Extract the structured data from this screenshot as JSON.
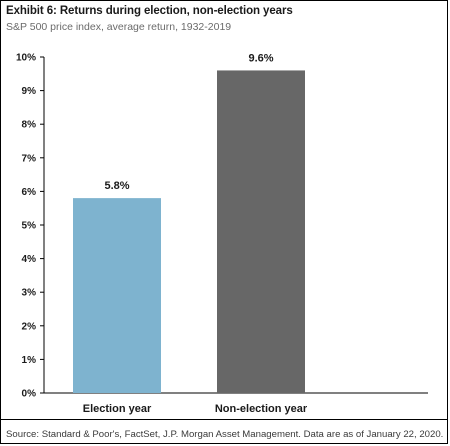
{
  "header": {
    "title": "Exhibit 6: Returns during election, non-election years",
    "subtitle": "S&P 500 price index, average return, 1932-2019"
  },
  "footer": {
    "source": "Source: Standard & Poor's, FactSet, J.P. Morgan Asset Management. Data are as of January 22, 2020."
  },
  "chart_data": {
    "type": "bar",
    "title": "Exhibit 6: Returns during election, non-election years",
    "subtitle": "S&P 500 price index, average return, 1932-2019",
    "categories": [
      "Election year",
      "Non-election year"
    ],
    "values": [
      5.8,
      9.6
    ],
    "data_labels": [
      "5.8%",
      "9.6%"
    ],
    "bar_colors": [
      "#7eb3cf",
      "#676767"
    ],
    "ylim": [
      0,
      10
    ],
    "yticks": [
      0,
      1,
      2,
      3,
      4,
      5,
      6,
      7,
      8,
      9,
      10
    ],
    "ytick_labels": [
      "0%",
      "1%",
      "2%",
      "3%",
      "4%",
      "5%",
      "6%",
      "7%",
      "8%",
      "9%",
      "10%"
    ],
    "xlabel": "",
    "ylabel": "",
    "grid": false,
    "legend": "none"
  }
}
